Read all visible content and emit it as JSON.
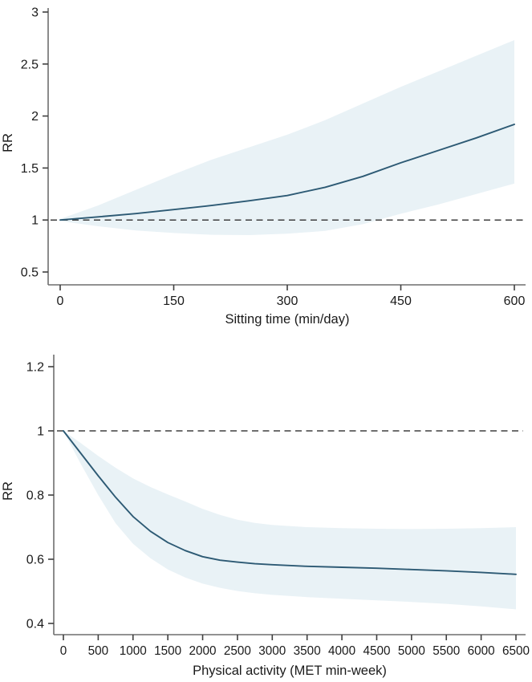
{
  "figure": {
    "background": "#ffffff",
    "description_texts": {
      "top_ylabel": "RR",
      "top_xlabel": "Sitting time (min/day)",
      "bottom_ylabel": "RR",
      "bottom_xlabel": "Physical activity (MET min-week)"
    }
  },
  "chart_data": [
    {
      "type": "line",
      "id": "sitting",
      "title": "",
      "xlabel": "Sitting time (min/day)",
      "ylabel": "RR",
      "xlim": [
        0,
        600
      ],
      "ylim": [
        0.5,
        3
      ],
      "xticks": [
        0,
        150,
        300,
        450,
        600
      ],
      "xtick_labels": [
        "0",
        "150",
        "300",
        "450",
        "600"
      ],
      "yticks": [
        0.5,
        1,
        1.5,
        2,
        2.5,
        3
      ],
      "ytick_labels": [
        "0.5",
        "1",
        "1.5",
        "2",
        "2.5",
        "3"
      ],
      "grid": false,
      "legend": "none",
      "refline_y": 1,
      "series": [
        {
          "name": "RR spline",
          "type": "line",
          "x": [
            0,
            50,
            100,
            150,
            200,
            250,
            300,
            350,
            400,
            450,
            500,
            550,
            600
          ],
          "y": [
            1.0,
            1.03,
            1.062,
            1.1,
            1.14,
            1.185,
            1.235,
            1.315,
            1.42,
            1.55,
            1.67,
            1.79,
            1.92
          ]
        },
        {
          "name": "95% CI band",
          "type": "band",
          "x": [
            0,
            50,
            100,
            150,
            200,
            250,
            300,
            350,
            400,
            450,
            500,
            550,
            600
          ],
          "upper": [
            1.01,
            1.14,
            1.29,
            1.44,
            1.58,
            1.7,
            1.82,
            1.96,
            2.12,
            2.28,
            2.43,
            2.58,
            2.73
          ],
          "lower": [
            0.99,
            0.94,
            0.9,
            0.875,
            0.858,
            0.855,
            0.868,
            0.895,
            0.96,
            1.06,
            1.15,
            1.25,
            1.35
          ]
        }
      ],
      "colors": {
        "line": "#2d5a74",
        "band": "#e9f2f6",
        "refline": "#3f3f3f",
        "axis": "#6e6e6e",
        "tick": "#3f3f3f",
        "text": "#1a1a1a"
      }
    },
    {
      "type": "line",
      "id": "physical-activity",
      "title": "",
      "xlabel": "Physical activity (MET min-week)",
      "ylabel": "RR",
      "xlim": [
        0,
        6500
      ],
      "ylim": [
        0.4,
        1.2
      ],
      "xticks": [
        0,
        500,
        1000,
        1500,
        2000,
        2500,
        3000,
        3500,
        4000,
        4500,
        5000,
        5500,
        6000,
        6500
      ],
      "xtick_labels": [
        "0",
        "500",
        "1000",
        "1500",
        "2000",
        "2500",
        "3000",
        "3500",
        "4000",
        "4500",
        "5000",
        "5500",
        "6000",
        "6500"
      ],
      "yticks": [
        0.4,
        0.6,
        0.8,
        1,
        1.2
      ],
      "ytick_labels": [
        "0.4",
        "0.6",
        "0.8",
        "1",
        "1.2"
      ],
      "grid": false,
      "legend": "none",
      "refline_y": 1,
      "series": [
        {
          "name": "RR spline",
          "type": "line",
          "x": [
            0,
            250,
            500,
            750,
            1000,
            1250,
            1500,
            1750,
            2000,
            2250,
            2500,
            2750,
            3000,
            3500,
            4000,
            4500,
            5000,
            5500,
            6000,
            6500
          ],
          "y": [
            1.0,
            0.93,
            0.86,
            0.793,
            0.733,
            0.687,
            0.652,
            0.627,
            0.608,
            0.597,
            0.591,
            0.586,
            0.583,
            0.578,
            0.575,
            0.572,
            0.568,
            0.564,
            0.559,
            0.553
          ]
        },
        {
          "name": "95% CI band",
          "type": "band",
          "x": [
            0,
            250,
            500,
            750,
            1000,
            1250,
            1500,
            1750,
            2000,
            2250,
            2500,
            2750,
            3000,
            3500,
            4000,
            4500,
            5000,
            5500,
            6000,
            6500
          ],
          "upper": [
            1.0,
            0.962,
            0.922,
            0.885,
            0.852,
            0.825,
            0.802,
            0.78,
            0.757,
            0.738,
            0.723,
            0.713,
            0.707,
            0.7,
            0.697,
            0.695,
            0.694,
            0.695,
            0.697,
            0.7
          ],
          "lower": [
            1.0,
            0.897,
            0.8,
            0.712,
            0.648,
            0.603,
            0.568,
            0.543,
            0.524,
            0.511,
            0.501,
            0.494,
            0.489,
            0.482,
            0.477,
            0.472,
            0.467,
            0.461,
            0.453,
            0.444
          ]
        }
      ],
      "colors": {
        "line": "#2d5a74",
        "band": "#e9f2f6",
        "refline": "#3f3f3f",
        "axis": "#6e6e6e",
        "tick": "#3f3f3f",
        "text": "#1a1a1a"
      }
    }
  ]
}
